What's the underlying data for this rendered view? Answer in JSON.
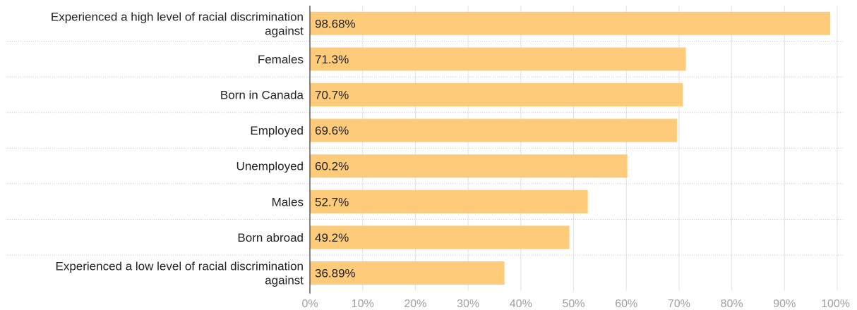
{
  "chart_data": {
    "type": "bar",
    "orientation": "horizontal",
    "categories": [
      "Experienced a high level of racial discrimination against",
      "Females",
      "Born in Canada",
      "Employed",
      "Unemployed",
      "Males",
      "Born abroad",
      "Experienced a low level of racial discrimination against"
    ],
    "category_lines": [
      [
        "Experienced a high level of racial discrimination",
        "against"
      ],
      [
        "Females"
      ],
      [
        "Born in Canada"
      ],
      [
        "Employed"
      ],
      [
        "Unemployed"
      ],
      [
        "Males"
      ],
      [
        "Born abroad"
      ],
      [
        "Experienced a low level of racial discrimination",
        "against"
      ]
    ],
    "values": [
      98.68,
      71.3,
      70.7,
      69.6,
      60.2,
      52.7,
      49.2,
      36.89
    ],
    "value_labels": [
      "98.68%",
      "71.3%",
      "70.7%",
      "69.6%",
      "60.2%",
      "52.7%",
      "49.2%",
      "36.89%"
    ],
    "xlim": [
      0,
      100
    ],
    "x_ticks": [
      0,
      10,
      20,
      30,
      40,
      50,
      60,
      70,
      80,
      90,
      100
    ],
    "x_tick_labels": [
      "0%",
      "10%",
      "20%",
      "30%",
      "40%",
      "50%",
      "60%",
      "70%",
      "80%",
      "90%",
      "100%"
    ],
    "title": "",
    "xlabel": "",
    "ylabel": "",
    "grid": true,
    "bar_color": "#fdcb7a"
  }
}
